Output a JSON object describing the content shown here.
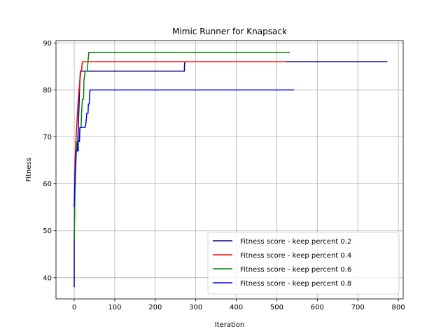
{
  "chart_data": {
    "type": "line",
    "title": "Mimic Runner for Knapsack",
    "xlabel": "Iteration",
    "ylabel": "Fitness",
    "xlim": [
      -45,
      812
    ],
    "ylim": [
      35.5,
      90.5
    ],
    "xticks": [
      0,
      100,
      200,
      300,
      400,
      500,
      600,
      700,
      800
    ],
    "yticks": [
      40,
      50,
      60,
      70,
      80,
      90
    ],
    "grid": true,
    "legend_position": "lower-right",
    "series": [
      {
        "name": "Fitness score - keep percent 0.2",
        "color": "#00008b",
        "points": [
          [
            0,
            38
          ],
          [
            0,
            48
          ],
          [
            1,
            55
          ],
          [
            2,
            63
          ],
          [
            3,
            67
          ],
          [
            5,
            67
          ],
          [
            8,
            67
          ],
          [
            10,
            72
          ],
          [
            12,
            77
          ],
          [
            13,
            80
          ],
          [
            14,
            82
          ],
          [
            15,
            84
          ],
          [
            20,
            84
          ],
          [
            272,
            84
          ],
          [
            272,
            85
          ],
          [
            273,
            86
          ],
          [
            773,
            86
          ]
        ]
      },
      {
        "name": "Fitness score - keep percent 0.4",
        "color": "#ff0000",
        "points": [
          [
            0,
            55
          ],
          [
            2,
            64
          ],
          [
            4,
            69
          ],
          [
            6,
            72
          ],
          [
            8,
            75
          ],
          [
            10,
            78
          ],
          [
            12,
            80
          ],
          [
            14,
            82
          ],
          [
            16,
            84
          ],
          [
            18,
            84
          ],
          [
            20,
            86
          ],
          [
            523,
            86
          ]
        ]
      },
      {
        "name": "Fitness score - keep percent 0.6",
        "color": "#008000",
        "points": [
          [
            0,
            48
          ],
          [
            1,
            55
          ],
          [
            3,
            62
          ],
          [
            5,
            67
          ],
          [
            7,
            69
          ],
          [
            12,
            69
          ],
          [
            14,
            72
          ],
          [
            17,
            72
          ],
          [
            18,
            75
          ],
          [
            20,
            78
          ],
          [
            23,
            78
          ],
          [
            24,
            82
          ],
          [
            27,
            84
          ],
          [
            32,
            84
          ],
          [
            34,
            86
          ],
          [
            36,
            88
          ],
          [
            532,
            88
          ]
        ]
      },
      {
        "name": "Fitness score - keep percent 0.8",
        "color": "#0000ff",
        "points": [
          [
            0,
            55
          ],
          [
            2,
            62
          ],
          [
            4,
            65
          ],
          [
            5,
            67
          ],
          [
            10,
            67
          ],
          [
            10,
            69
          ],
          [
            13,
            69
          ],
          [
            14,
            72
          ],
          [
            27,
            72
          ],
          [
            29,
            73
          ],
          [
            31,
            75
          ],
          [
            34,
            75
          ],
          [
            35,
            77
          ],
          [
            37,
            77
          ],
          [
            38,
            79
          ],
          [
            39,
            80
          ],
          [
            543,
            80
          ]
        ]
      }
    ]
  }
}
